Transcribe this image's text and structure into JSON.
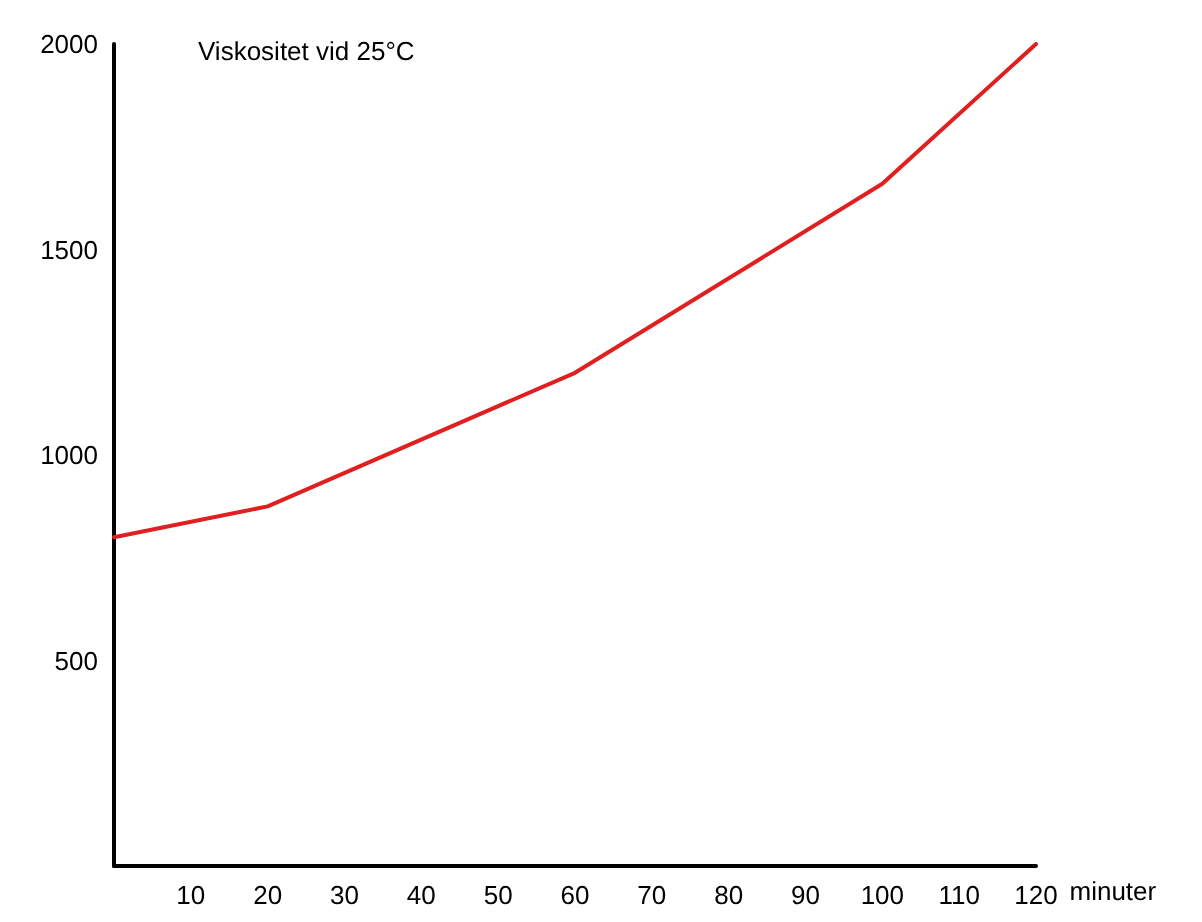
{
  "chart_data": {
    "type": "line",
    "title": "Viskositet vid 25°C",
    "xlabel": "minuter",
    "x": [
      0,
      20,
      60,
      100,
      120
    ],
    "series": [
      {
        "color": "#e02020",
        "values": [
          800,
          875,
          1200,
          1660,
          2000
        ]
      }
    ],
    "xlim": [
      0,
      120
    ],
    "xticks": [
      10,
      20,
      30,
      40,
      50,
      60,
      70,
      80,
      90,
      100,
      110,
      120
    ],
    "ylim": [
      0,
      2000
    ],
    "yticks": [
      500,
      1000,
      1500,
      2000
    ],
    "grid": false,
    "marker": "none",
    "line_style": "solid"
  }
}
